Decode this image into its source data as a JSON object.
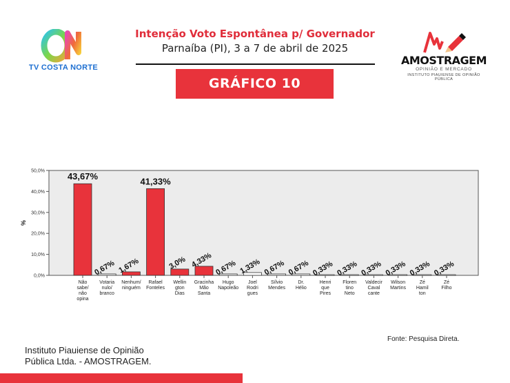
{
  "header": {
    "title": "Intenção Voto Espontânea p/ Governador",
    "subtitle": "Parnaíba (PI), 3 a 7 de abril de 2025",
    "chart_label": "GRÁFICO 10"
  },
  "logos": {
    "left_text": "TV COSTA NORTE",
    "right_name": "AMOSTRAGEM",
    "right_tagline": "OPINIÃO E MERCADO",
    "right_institute": "INSTITUTO PIAUIENSE DE OPINIÃO PÚBLICA"
  },
  "colors": {
    "accent": "#e8333b",
    "title_red": "#e02d3a",
    "bar_red": "#e8333b",
    "plot_bg": "#ececec",
    "logo_blue": "#1d6fd1"
  },
  "chart_data": {
    "type": "bar",
    "ylabel": "%",
    "ylim": [
      0,
      50
    ],
    "yticks": [
      "0,0%",
      "10,0%",
      "20,0%",
      "30,0%",
      "40,0%",
      "50,0%"
    ],
    "categories": [
      [
        "Não",
        "sabe/",
        "não",
        "opina"
      ],
      [
        "Votaria",
        "nulo/",
        "branco"
      ],
      [
        "Nenhum/",
        "ninguém"
      ],
      [
        "Rafael",
        "Fonteles"
      ],
      [
        "Wellin",
        "gton",
        "Dias"
      ],
      [
        "Gracinha",
        "Mão",
        "Santa"
      ],
      [
        "Hugo",
        "Napoleão"
      ],
      [
        "Joel",
        "Rodri",
        "gues"
      ],
      [
        "Sílvio",
        "Mendes"
      ],
      [
        "Dr.",
        "Hélio"
      ],
      [
        "Henri",
        "que",
        "Pires"
      ],
      [
        "Floren",
        "tino",
        "Neto"
      ],
      [
        "Valdecir",
        "Caval",
        "cante"
      ],
      [
        "Wilson",
        "Martins"
      ],
      [
        "Zé",
        "Hamil",
        "ton"
      ],
      [
        "Zé",
        "Filho"
      ]
    ],
    "values": [
      43.67,
      0.67,
      1.67,
      41.33,
      3.0,
      4.33,
      0.67,
      1.33,
      0.67,
      0.67,
      0.33,
      0.33,
      0.33,
      0.33,
      0.33,
      0.33
    ],
    "labels": [
      "43,67%",
      "0,67%",
      "1,67%",
      "41,33%",
      "3,0%",
      "4,33%",
      "0,67%",
      "1,33%",
      "0,67%",
      "0,67%",
      "0,33%",
      "0,33%",
      "0,33%",
      "0,33%",
      "0,33%",
      "0,33%"
    ],
    "grid": false,
    "legend": "none"
  },
  "footer": {
    "source": "Fonte: Pesquisa Direta.",
    "institute_line1": "Instituto Piauiense de Opinião",
    "institute_line2": "Pública Ltda. - AMOSTRAGEM."
  }
}
